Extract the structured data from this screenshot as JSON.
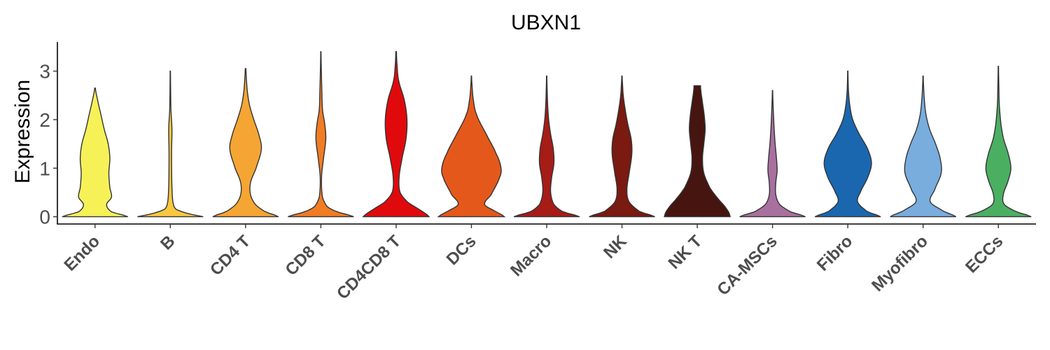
{
  "chart_data": {
    "type": "violin",
    "title": "UBXN1",
    "xlabel": "",
    "ylabel": "Expression",
    "ylim": [
      -0.15,
      3.6
    ],
    "yticks": [
      0,
      1,
      2,
      3
    ],
    "grid": false,
    "legend": "none",
    "categories": [
      "Endo",
      "B",
      "CD4 T",
      "CD8 T",
      "CD4CD8 T",
      "DCs",
      "Macro",
      "NK",
      "NK T",
      "CA-MSCs",
      "Fibro",
      "Myofibro",
      "ECCs"
    ],
    "colors": [
      "#F7F158",
      "#F8C840",
      "#F5A533",
      "#F07C23",
      "#E00A0D",
      "#E5581B",
      "#A61C17",
      "#7A1A10",
      "#461510",
      "#A8709F",
      "#1A67B0",
      "#78ADDE",
      "#4BAF62"
    ],
    "series": [
      {
        "name": "Endo",
        "max": 2.65,
        "density": [
          [
            0,
            1
          ],
          [
            0.1,
            0.5
          ],
          [
            0.25,
            0.35
          ],
          [
            0.4,
            0.5
          ],
          [
            0.6,
            0.45
          ],
          [
            0.9,
            0.42
          ],
          [
            1.2,
            0.45
          ],
          [
            1.5,
            0.4
          ],
          [
            1.8,
            0.28
          ],
          [
            2.1,
            0.18
          ],
          [
            2.4,
            0.08
          ],
          [
            2.65,
            0.01
          ]
        ]
      },
      {
        "name": "B",
        "max": 3.0,
        "density": [
          [
            0,
            1
          ],
          [
            0.05,
            0.6
          ],
          [
            0.15,
            0.18
          ],
          [
            0.3,
            0.08
          ],
          [
            0.6,
            0.05
          ],
          [
            1.0,
            0.04
          ],
          [
            1.4,
            0.04
          ],
          [
            1.8,
            0.05
          ],
          [
            2.2,
            0.02
          ],
          [
            2.6,
            0.01
          ],
          [
            3.0,
            0.005
          ]
        ]
      },
      {
        "name": "CD4 T",
        "max": 3.05,
        "density": [
          [
            0,
            1
          ],
          [
            0.1,
            0.6
          ],
          [
            0.25,
            0.3
          ],
          [
            0.45,
            0.15
          ],
          [
            0.7,
            0.15
          ],
          [
            1.0,
            0.32
          ],
          [
            1.4,
            0.48
          ],
          [
            1.7,
            0.4
          ],
          [
            2.0,
            0.25
          ],
          [
            2.3,
            0.12
          ],
          [
            2.6,
            0.05
          ],
          [
            3.05,
            0.01
          ]
        ]
      },
      {
        "name": "CD8 T",
        "max": 3.4,
        "density": [
          [
            0,
            1
          ],
          [
            0.1,
            0.5
          ],
          [
            0.2,
            0.2
          ],
          [
            0.4,
            0.05
          ],
          [
            0.8,
            0.02
          ],
          [
            1.2,
            0.08
          ],
          [
            1.6,
            0.15
          ],
          [
            1.9,
            0.12
          ],
          [
            2.2,
            0.05
          ],
          [
            2.6,
            0.03
          ],
          [
            3.0,
            0.015
          ],
          [
            3.4,
            0.005
          ]
        ]
      },
      {
        "name": "CD4CD8 T",
        "max": 3.4,
        "density": [
          [
            0,
            1
          ],
          [
            0.15,
            0.7
          ],
          [
            0.3,
            0.35
          ],
          [
            0.5,
            0.12
          ],
          [
            0.8,
            0.09
          ],
          [
            1.2,
            0.18
          ],
          [
            1.6,
            0.3
          ],
          [
            2.0,
            0.33
          ],
          [
            2.4,
            0.25
          ],
          [
            2.8,
            0.08
          ],
          [
            3.1,
            0.03
          ],
          [
            3.4,
            0.01
          ]
        ]
      },
      {
        "name": "DCs",
        "max": 2.9,
        "density": [
          [
            0,
            1
          ],
          [
            0.1,
            0.75
          ],
          [
            0.25,
            0.4
          ],
          [
            0.45,
            0.6
          ],
          [
            0.8,
            0.85
          ],
          [
            1.0,
            0.9
          ],
          [
            1.3,
            0.75
          ],
          [
            1.7,
            0.45
          ],
          [
            2.1,
            0.16
          ],
          [
            2.4,
            0.06
          ],
          [
            2.7,
            0.02
          ],
          [
            2.9,
            0.005
          ]
        ]
      },
      {
        "name": "Macro",
        "max": 2.9,
        "density": [
          [
            0,
            1
          ],
          [
            0.1,
            0.5
          ],
          [
            0.25,
            0.22
          ],
          [
            0.5,
            0.12
          ],
          [
            0.8,
            0.15
          ],
          [
            1.1,
            0.22
          ],
          [
            1.4,
            0.2
          ],
          [
            1.7,
            0.12
          ],
          [
            2.0,
            0.06
          ],
          [
            2.3,
            0.03
          ],
          [
            2.6,
            0.015
          ],
          [
            2.9,
            0.005
          ]
        ]
      },
      {
        "name": "NK",
        "max": 2.9,
        "density": [
          [
            0,
            1
          ],
          [
            0.1,
            0.55
          ],
          [
            0.3,
            0.22
          ],
          [
            0.55,
            0.15
          ],
          [
            0.9,
            0.22
          ],
          [
            1.3,
            0.3
          ],
          [
            1.6,
            0.28
          ],
          [
            1.9,
            0.18
          ],
          [
            2.2,
            0.1
          ],
          [
            2.5,
            0.04
          ],
          [
            2.7,
            0.02
          ],
          [
            2.9,
            0.005
          ]
        ]
      },
      {
        "name": "NK T",
        "max": 2.7,
        "density": [
          [
            0,
            1
          ],
          [
            0.15,
            0.9
          ],
          [
            0.4,
            0.6
          ],
          [
            0.6,
            0.38
          ],
          [
            0.9,
            0.2
          ],
          [
            1.2,
            0.16
          ],
          [
            1.5,
            0.2
          ],
          [
            1.8,
            0.24
          ],
          [
            2.1,
            0.21
          ],
          [
            2.4,
            0.15
          ],
          [
            2.6,
            0.11
          ],
          [
            2.7,
            0.1
          ]
        ]
      },
      {
        "name": "CA-MSCs",
        "max": 2.6,
        "density": [
          [
            0,
            1
          ],
          [
            0.1,
            0.55
          ],
          [
            0.25,
            0.22
          ],
          [
            0.45,
            0.1
          ],
          [
            0.7,
            0.1
          ],
          [
            0.95,
            0.14
          ],
          [
            1.2,
            0.12
          ],
          [
            1.5,
            0.08
          ],
          [
            1.8,
            0.05
          ],
          [
            2.1,
            0.03
          ],
          [
            2.35,
            0.015
          ],
          [
            2.6,
            0.005
          ]
        ]
      },
      {
        "name": "Fibro",
        "max": 3.0,
        "density": [
          [
            0,
            1
          ],
          [
            0.1,
            0.6
          ],
          [
            0.3,
            0.3
          ],
          [
            0.5,
            0.38
          ],
          [
            0.8,
            0.6
          ],
          [
            1.1,
            0.72
          ],
          [
            1.4,
            0.6
          ],
          [
            1.7,
            0.35
          ],
          [
            2.0,
            0.15
          ],
          [
            2.3,
            0.06
          ],
          [
            2.6,
            0.02
          ],
          [
            3.0,
            0.005
          ]
        ]
      },
      {
        "name": "Myofibro",
        "max": 2.9,
        "density": [
          [
            0,
            1
          ],
          [
            0.1,
            0.65
          ],
          [
            0.3,
            0.22
          ],
          [
            0.55,
            0.35
          ],
          [
            0.9,
            0.55
          ],
          [
            1.2,
            0.52
          ],
          [
            1.5,
            0.38
          ],
          [
            1.8,
            0.2
          ],
          [
            2.1,
            0.09
          ],
          [
            2.4,
            0.04
          ],
          [
            2.7,
            0.015
          ],
          [
            2.9,
            0.005
          ]
        ]
      },
      {
        "name": "ECCs",
        "max": 3.1,
        "density": [
          [
            0,
            1
          ],
          [
            0.1,
            0.55
          ],
          [
            0.25,
            0.18
          ],
          [
            0.45,
            0.15
          ],
          [
            0.75,
            0.3
          ],
          [
            1.0,
            0.38
          ],
          [
            1.3,
            0.3
          ],
          [
            1.6,
            0.16
          ],
          [
            1.9,
            0.08
          ],
          [
            2.3,
            0.03
          ],
          [
            2.7,
            0.015
          ],
          [
            3.1,
            0.005
          ]
        ]
      }
    ]
  }
}
